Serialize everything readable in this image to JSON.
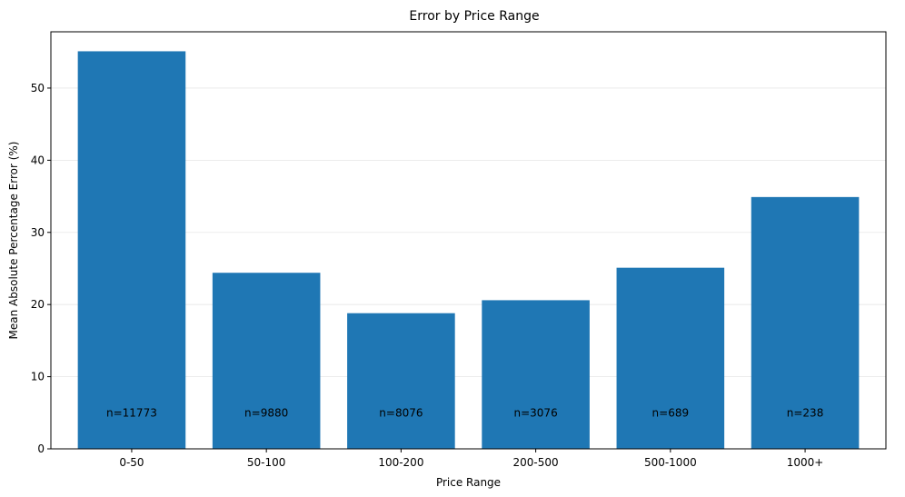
{
  "chart_data": {
    "type": "bar",
    "title": "Error by Price Range",
    "xlabel": "Price Range",
    "ylabel": "Mean Absolute Percentage Error (%)",
    "categories": [
      "0-50",
      "50-100",
      "100-200",
      "200-500",
      "500-1000",
      "1000+"
    ],
    "values": [
      55.1,
      24.4,
      18.8,
      20.6,
      25.1,
      34.9
    ],
    "bar_labels": [
      "n=11773",
      "n=9880",
      "n=8076",
      "n=3076",
      "n=689",
      "n=238"
    ],
    "ylim": [
      0,
      57.8
    ],
    "yticks": [
      0,
      10,
      20,
      30,
      40,
      50
    ],
    "grid": "y",
    "bar_color": "#1f77b4"
  }
}
